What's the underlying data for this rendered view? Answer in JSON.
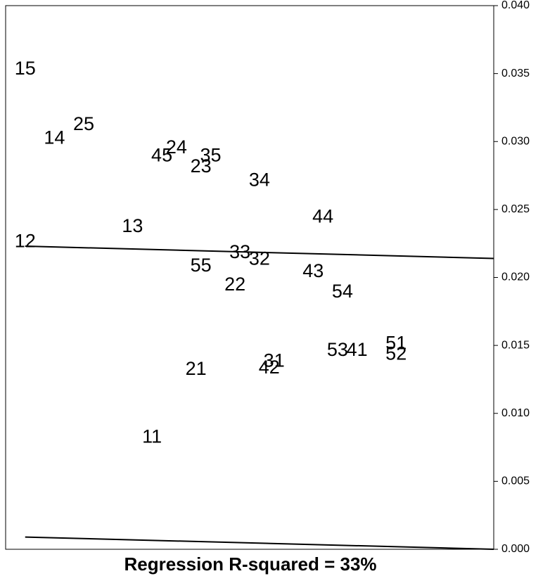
{
  "chart_data": {
    "type": "scatter",
    "caption": "Regression R-squared = 33%",
    "y_axis": {
      "position": "right",
      "range": [
        0,
        0.04
      ],
      "ticks": [
        0.0,
        0.005,
        0.01,
        0.015,
        0.02,
        0.025,
        0.03,
        0.035,
        0.04
      ],
      "tick_labels": [
        "0.000",
        "0.005",
        "0.010",
        "0.015",
        "0.020",
        "0.025",
        "0.030",
        "0.035",
        "0.040"
      ]
    },
    "x_axis": {
      "visible": false,
      "range": [
        0,
        1
      ]
    },
    "grid": false,
    "legend": "none",
    "points": [
      {
        "label": "15",
        "x": 0.04,
        "y": 0.0354
      },
      {
        "label": "25",
        "x": 0.16,
        "y": 0.0313
      },
      {
        "label": "14",
        "x": 0.1,
        "y": 0.0303
      },
      {
        "label": "24",
        "x": 0.35,
        "y": 0.0296
      },
      {
        "label": "45",
        "x": 0.32,
        "y": 0.029
      },
      {
        "label": "35",
        "x": 0.42,
        "y": 0.029
      },
      {
        "label": "23",
        "x": 0.4,
        "y": 0.0282
      },
      {
        "label": "34",
        "x": 0.52,
        "y": 0.0272
      },
      {
        "label": "44",
        "x": 0.65,
        "y": 0.0245
      },
      {
        "label": "13",
        "x": 0.26,
        "y": 0.0238
      },
      {
        "label": "12",
        "x": 0.04,
        "y": 0.0227
      },
      {
        "label": "33",
        "x": 0.48,
        "y": 0.0219
      },
      {
        "label": "32",
        "x": 0.52,
        "y": 0.0214
      },
      {
        "label": "55",
        "x": 0.4,
        "y": 0.0209
      },
      {
        "label": "43",
        "x": 0.63,
        "y": 0.0205
      },
      {
        "label": "22",
        "x": 0.47,
        "y": 0.0195
      },
      {
        "label": "54",
        "x": 0.69,
        "y": 0.019
      },
      {
        "label": "51",
        "x": 0.8,
        "y": 0.0152
      },
      {
        "label": "53",
        "x": 0.68,
        "y": 0.0147
      },
      {
        "label": "41",
        "x": 0.72,
        "y": 0.0147
      },
      {
        "label": "52",
        "x": 0.8,
        "y": 0.0144
      },
      {
        "label": "31",
        "x": 0.55,
        "y": 0.0139
      },
      {
        "label": "42",
        "x": 0.54,
        "y": 0.0134
      },
      {
        "label": "21",
        "x": 0.39,
        "y": 0.0133
      },
      {
        "label": "11",
        "x": 0.3,
        "y": 0.0083
      }
    ],
    "lines": [
      {
        "x": [
          0.04,
          1.0
        ],
        "y": [
          0.0223,
          0.0214
        ]
      },
      {
        "x": [
          0.04,
          1.0
        ],
        "y": [
          0.0009,
          0.0
        ]
      }
    ]
  }
}
